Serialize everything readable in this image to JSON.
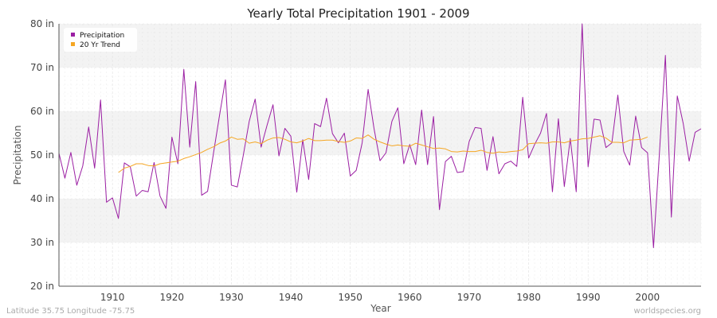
{
  "chart_data": {
    "type": "line",
    "title": "Yearly Total Precipitation 1901 - 2009",
    "xlabel": "Year",
    "ylabel": "Precipitation",
    "xlim": [
      1901,
      2009
    ],
    "ylim": [
      20,
      80
    ],
    "x_ticks": [
      1910,
      1920,
      1930,
      1940,
      1950,
      1960,
      1970,
      1980,
      1990,
      2000
    ],
    "y_ticks": [
      {
        "value": 20,
        "label": "20 in"
      },
      {
        "value": 30,
        "label": "30 in"
      },
      {
        "value": 40,
        "label": "40 in"
      },
      {
        "value": 50,
        "label": "50 in"
      },
      {
        "value": 60,
        "label": "60 in"
      },
      {
        "value": 70,
        "label": "70 in"
      },
      {
        "value": 80,
        "label": "80 in"
      }
    ],
    "grid": true,
    "legend_position": "top-left",
    "series": [
      {
        "name": "Precipitation",
        "color": "#9b1fa3",
        "x_start": 1901,
        "values": [
          50.4,
          44.7,
          50.6,
          43.1,
          47.5,
          56.4,
          47.0,
          62.6,
          39.2,
          40.2,
          35.5,
          48.2,
          47.3,
          40.6,
          41.9,
          41.6,
          48.3,
          40.6,
          37.8,
          54.1,
          48.0,
          69.6,
          51.8,
          66.8,
          40.8,
          41.7,
          50.5,
          59.0,
          67.2,
          43.1,
          42.7,
          49.9,
          57.7,
          62.8,
          51.8,
          56.8,
          61.5,
          49.8,
          56.1,
          54.3,
          41.5,
          53.5,
          44.4,
          57.2,
          56.5,
          63.0,
          54.9,
          52.8,
          55.0,
          45.2,
          46.5,
          52.8,
          65.0,
          56.0,
          48.7,
          50.5,
          57.7,
          60.8,
          48.0,
          52.4,
          47.8,
          60.3,
          47.8,
          58.8,
          37.5,
          48.5,
          49.7,
          46.0,
          46.2,
          53.1,
          56.3,
          56.1,
          46.5,
          54.2,
          45.7,
          48.0,
          48.6,
          47.4,
          63.2,
          49.3,
          52.4,
          55.0,
          59.5,
          41.6,
          58.3,
          42.8,
          53.8,
          41.6,
          80.0,
          47.3,
          58.2,
          58.0,
          51.7,
          52.8,
          63.7,
          50.8,
          47.7,
          58.9,
          51.7,
          50.5,
          28.8,
          50.5,
          72.8,
          35.8,
          63.5,
          57.2,
          48.6,
          55.2,
          56.0
        ]
      },
      {
        "name": "20 Yr Trend",
        "color": "#f5a623",
        "x_start": 1911,
        "values": [
          46.0,
          47.0,
          47.4,
          48.0,
          48.0,
          47.6,
          47.5,
          48.0,
          48.2,
          48.4,
          48.6,
          49.2,
          49.6,
          50.1,
          50.6,
          51.3,
          51.9,
          52.7,
          53.2,
          54.1,
          53.6,
          53.7,
          52.7,
          53.0,
          52.6,
          53.4,
          53.9,
          54.0,
          53.6,
          53.0,
          52.8,
          53.2,
          53.8,
          53.3,
          53.3,
          53.4,
          53.4,
          53.1,
          52.9,
          53.2,
          53.9,
          53.8,
          54.6,
          53.6,
          53.0,
          52.5,
          52.1,
          52.3,
          52.1,
          52.0,
          52.7,
          52.3,
          51.9,
          51.5,
          51.6,
          51.4,
          50.8,
          50.7,
          50.9,
          50.8,
          50.8,
          51.1,
          50.6,
          50.4,
          50.7,
          50.6,
          50.8,
          50.9,
          51.2,
          52.6,
          52.7,
          52.8,
          52.7,
          53.0,
          53.0,
          52.8,
          53.2,
          53.4,
          53.7,
          53.8,
          54.1,
          54.4,
          53.9,
          52.9,
          52.9,
          52.8,
          53.4,
          53.5,
          53.6,
          54.1
        ]
      }
    ]
  },
  "footer": {
    "location": "Latitude 35.75 Longitude -75.75",
    "source": "worldspecies.org"
  },
  "colors": {
    "band_light": "#ffffff",
    "band_dark": "#f3f3f3",
    "grid": "#dddddd",
    "axis": "#555555"
  }
}
